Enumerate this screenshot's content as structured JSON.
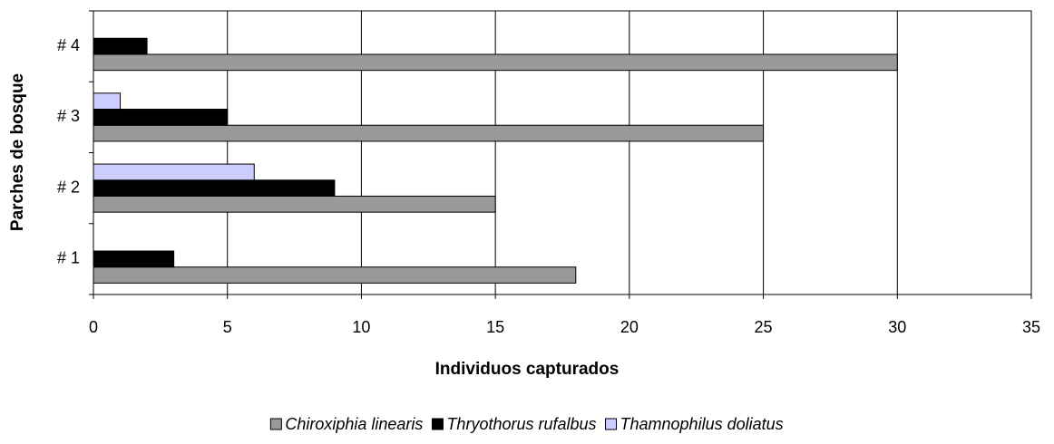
{
  "chart_data": {
    "type": "bar",
    "orientation": "horizontal",
    "xlabel": "Individuos capturados",
    "ylabel": "Parches de bosque",
    "categories": [
      "# 1",
      "# 2",
      "# 3",
      "# 4"
    ],
    "series": [
      {
        "name": "Chiroxiphia linearis",
        "color": "#999999",
        "values": [
          18,
          15,
          25,
          30
        ]
      },
      {
        "name": "Thryothorus rufalbus",
        "color": "#000000",
        "values": [
          3,
          9,
          5,
          2
        ]
      },
      {
        "name": "Thamnophilus doliatus",
        "color": "#ccccff",
        "values": [
          0,
          6,
          1,
          0
        ]
      }
    ],
    "xlim": [
      0,
      35
    ],
    "xticks": [
      0,
      5,
      10,
      15,
      20,
      25,
      30,
      35
    ],
    "grid": true,
    "legend": "bottom"
  }
}
